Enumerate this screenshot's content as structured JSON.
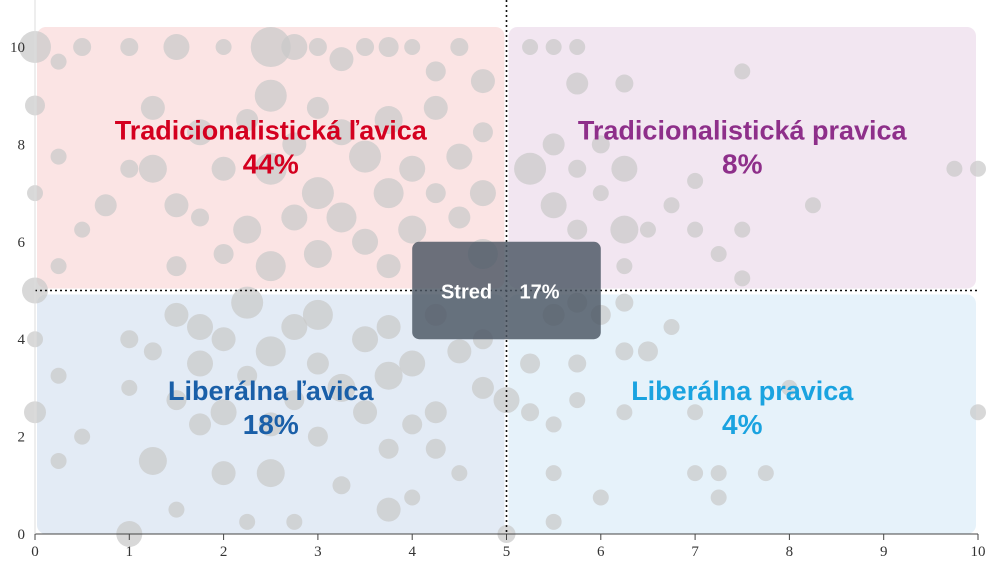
{
  "chart_data": {
    "type": "scatter",
    "x": {
      "ticks": [
        0,
        1,
        2,
        3,
        4,
        5,
        6,
        7,
        8,
        9,
        10
      ],
      "range": [
        0,
        10
      ]
    },
    "y": {
      "ticks": [
        0,
        2,
        4,
        6,
        8,
        10
      ],
      "range": [
        0,
        10
      ]
    },
    "divider": {
      "x": 5,
      "y": 5,
      "style": "dotted"
    },
    "quadrants": [
      {
        "id": "tl",
        "label": "Tradicionalistická ľavica",
        "percent": "44%",
        "color": "#d4001f",
        "fill": "#fbe4e4",
        "x": [
          0,
          5
        ],
        "y": [
          5,
          10
        ]
      },
      {
        "id": "tr",
        "label": "Tradicionalistická pravica",
        "percent": "8%",
        "color": "#8e2f8a",
        "fill": "#f2e6f1",
        "x": [
          5,
          10
        ],
        "y": [
          5,
          10
        ]
      },
      {
        "id": "bl",
        "label": "Liberálna ľavica",
        "percent": "18%",
        "color": "#1a5fa8",
        "fill": "#e3ebf5",
        "x": [
          0,
          5
        ],
        "y": [
          0,
          5
        ]
      },
      {
        "id": "br",
        "label": "Liberálna pravica",
        "percent": "4%",
        "color": "#1aa3e0",
        "fill": "#e6f2fa",
        "x": [
          5,
          10
        ],
        "y": [
          0,
          5
        ]
      }
    ],
    "center": {
      "label": "Stred",
      "percent": "17%",
      "x": [
        4,
        6
      ],
      "y": [
        4,
        6
      ]
    },
    "points": [
      [
        0,
        10,
        1.6
      ],
      [
        0,
        5,
        1.3
      ],
      [
        0,
        2.5,
        1.1
      ],
      [
        0,
        8.8,
        1.0
      ],
      [
        0,
        7,
        0.8
      ],
      [
        0.25,
        9.7,
        0.8
      ],
      [
        0.5,
        10,
        0.9
      ],
      [
        1,
        10,
        0.9
      ],
      [
        1.5,
        10,
        1.3
      ],
      [
        2,
        10,
        0.8
      ],
      [
        2.5,
        10,
        2.0
      ],
      [
        2.75,
        10,
        1.3
      ],
      [
        3,
        10,
        0.9
      ],
      [
        3.25,
        9.75,
        1.2
      ],
      [
        3.5,
        10,
        0.9
      ],
      [
        3.75,
        10,
        1.0
      ],
      [
        4,
        10,
        0.8
      ],
      [
        4.25,
        9.5,
        1.0
      ],
      [
        4.5,
        10,
        0.9
      ],
      [
        4.75,
        9.3,
        1.2
      ],
      [
        5.25,
        10,
        0.8
      ],
      [
        5.5,
        10,
        0.8
      ],
      [
        5.75,
        10,
        0.8
      ],
      [
        5.75,
        9.25,
        1.1
      ],
      [
        6.25,
        9.25,
        0.9
      ],
      [
        7.5,
        9.5,
        0.8
      ],
      [
        9.75,
        7.5,
        0.8
      ],
      [
        10,
        7.5,
        0.8
      ],
      [
        0.25,
        7.75,
        0.8
      ],
      [
        0.5,
        6.25,
        0.8
      ],
      [
        0.25,
        5.5,
        0.8
      ],
      [
        0.75,
        6.75,
        1.1
      ],
      [
        1,
        7.5,
        0.9
      ],
      [
        1.25,
        8.75,
        1.2
      ],
      [
        1.25,
        7.5,
        1.4
      ],
      [
        1.5,
        6.75,
        1.2
      ],
      [
        1.5,
        5.5,
        1.0
      ],
      [
        1.75,
        8.25,
        1.3
      ],
      [
        1.75,
        6.5,
        0.9
      ],
      [
        1.75,
        4.25,
        1.3
      ],
      [
        2,
        7.5,
        1.2
      ],
      [
        2,
        5.75,
        1.0
      ],
      [
        2.25,
        8.5,
        1.1
      ],
      [
        2.25,
        6.25,
        1.4
      ],
      [
        2.5,
        9,
        1.6
      ],
      [
        2.5,
        7.5,
        1.6
      ],
      [
        2.5,
        5.5,
        1.5
      ],
      [
        2.75,
        8,
        1.2
      ],
      [
        2.75,
        6.5,
        1.3
      ],
      [
        3,
        8.75,
        1.1
      ],
      [
        3,
        7,
        1.6
      ],
      [
        3,
        5.75,
        1.4
      ],
      [
        3.25,
        8.25,
        1.3
      ],
      [
        3.25,
        6.5,
        1.5
      ],
      [
        3.5,
        7.75,
        1.6
      ],
      [
        3.5,
        6,
        1.3
      ],
      [
        3.75,
        8.5,
        1.4
      ],
      [
        3.75,
        7,
        1.5
      ],
      [
        3.75,
        5.5,
        1.2
      ],
      [
        4,
        7.5,
        1.3
      ],
      [
        4,
        6.25,
        1.4
      ],
      [
        4.25,
        8.75,
        1.2
      ],
      [
        4.25,
        7,
        1.0
      ],
      [
        4.5,
        7.75,
        1.3
      ],
      [
        4.5,
        6.5,
        1.1
      ],
      [
        4.75,
        8.25,
        1.0
      ],
      [
        4.75,
        7,
        1.3
      ],
      [
        4.75,
        5.75,
        1.5
      ],
      [
        5.25,
        7.5,
        1.6
      ],
      [
        5.5,
        6.75,
        1.3
      ],
      [
        5.5,
        8,
        1.1
      ],
      [
        5.75,
        7.5,
        0.9
      ],
      [
        5.75,
        6.25,
        1.0
      ],
      [
        6,
        8,
        0.9
      ],
      [
        6,
        7,
        0.8
      ],
      [
        6.25,
        7.5,
        1.3
      ],
      [
        6.25,
        6.25,
        1.4
      ],
      [
        6.25,
        5.5,
        0.8
      ],
      [
        6.5,
        6.25,
        0.8
      ],
      [
        6.75,
        6.75,
        0.8
      ],
      [
        7,
        7.25,
        0.8
      ],
      [
        7,
        6.25,
        0.8
      ],
      [
        7.25,
        5.75,
        0.8
      ],
      [
        7.5,
        6.25,
        0.8
      ],
      [
        7.5,
        5.25,
        0.8
      ],
      [
        8.25,
        6.75,
        0.8
      ],
      [
        0,
        4,
        0.8
      ],
      [
        0.25,
        3.25,
        0.8
      ],
      [
        0.5,
        2,
        0.8
      ],
      [
        1,
        4,
        0.9
      ],
      [
        1,
        3,
        0.8
      ],
      [
        1.25,
        3.75,
        0.9
      ],
      [
        1.25,
        1.5,
        1.4
      ],
      [
        1.5,
        2.75,
        1.0
      ],
      [
        1.5,
        4.5,
        1.2
      ],
      [
        1.75,
        2.25,
        1.1
      ],
      [
        1.75,
        3.5,
        1.3
      ],
      [
        2,
        4,
        1.2
      ],
      [
        2,
        2.5,
        1.3
      ],
      [
        2,
        1.25,
        1.2
      ],
      [
        2.25,
        3.25,
        1.0
      ],
      [
        2.25,
        4.75,
        1.6
      ],
      [
        2.5,
        3.75,
        1.5
      ],
      [
        2.5,
        2.25,
        1.2
      ],
      [
        2.5,
        1.25,
        1.4
      ],
      [
        2.75,
        4.25,
        1.3
      ],
      [
        2.75,
        2.75,
        1.0
      ],
      [
        3,
        3.5,
        1.1
      ],
      [
        3,
        4.5,
        1.5
      ],
      [
        3,
        2,
        1.0
      ],
      [
        3.25,
        3,
        1.4
      ],
      [
        3.25,
        1,
        0.9
      ],
      [
        3.5,
        4,
        1.3
      ],
      [
        3.5,
        2.5,
        1.2
      ],
      [
        3.75,
        3.25,
        1.4
      ],
      [
        3.75,
        4.25,
        1.2
      ],
      [
        3.75,
        1.75,
        1.0
      ],
      [
        3.75,
        0.5,
        1.2
      ],
      [
        4,
        3.5,
        1.3
      ],
      [
        4,
        2.25,
        1.0
      ],
      [
        4.25,
        4.5,
        1.1
      ],
      [
        4.25,
        2.5,
        1.1
      ],
      [
        4.25,
        1.75,
        1.0
      ],
      [
        4.5,
        3.75,
        1.2
      ],
      [
        4.5,
        1.25,
        0.8
      ],
      [
        4.75,
        3,
        1.1
      ],
      [
        4.75,
        4,
        1.0
      ],
      [
        5,
        2.75,
        1.3
      ],
      [
        5.25,
        3.5,
        1.0
      ],
      [
        5.25,
        2.5,
        0.9
      ],
      [
        5.5,
        4.5,
        1.1
      ],
      [
        5.5,
        2.25,
        0.8
      ],
      [
        5.5,
        1.25,
        0.8
      ],
      [
        5.75,
        3.5,
        0.9
      ],
      [
        5.75,
        4.75,
        1.0
      ],
      [
        5.75,
        2.75,
        0.8
      ],
      [
        6,
        4.5,
        1.0
      ],
      [
        6.25,
        4.75,
        0.9
      ],
      [
        6.25,
        3.75,
        0.9
      ],
      [
        6.25,
        2.5,
        0.8
      ],
      [
        6.5,
        3.75,
        1.0
      ],
      [
        6.75,
        4.25,
        0.8
      ],
      [
        7,
        2.5,
        0.8
      ],
      [
        7,
        1.25,
        0.8
      ],
      [
        7.25,
        1.25,
        0.8
      ],
      [
        7.25,
        0.75,
        0.8
      ],
      [
        7.75,
        1.25,
        0.8
      ],
      [
        8,
        3,
        0.8
      ],
      [
        10,
        2.5,
        0.8
      ],
      [
        0.25,
        1.5,
        0.8
      ],
      [
        1,
        0,
        1.3
      ],
      [
        1.5,
        0.5,
        0.8
      ],
      [
        2.25,
        0.25,
        0.8
      ],
      [
        2.75,
        0.25,
        0.8
      ],
      [
        4,
        0.75,
        0.8
      ],
      [
        5,
        0,
        0.9
      ],
      [
        5.5,
        0.25,
        0.8
      ],
      [
        6,
        0.75,
        0.8
      ]
    ]
  }
}
